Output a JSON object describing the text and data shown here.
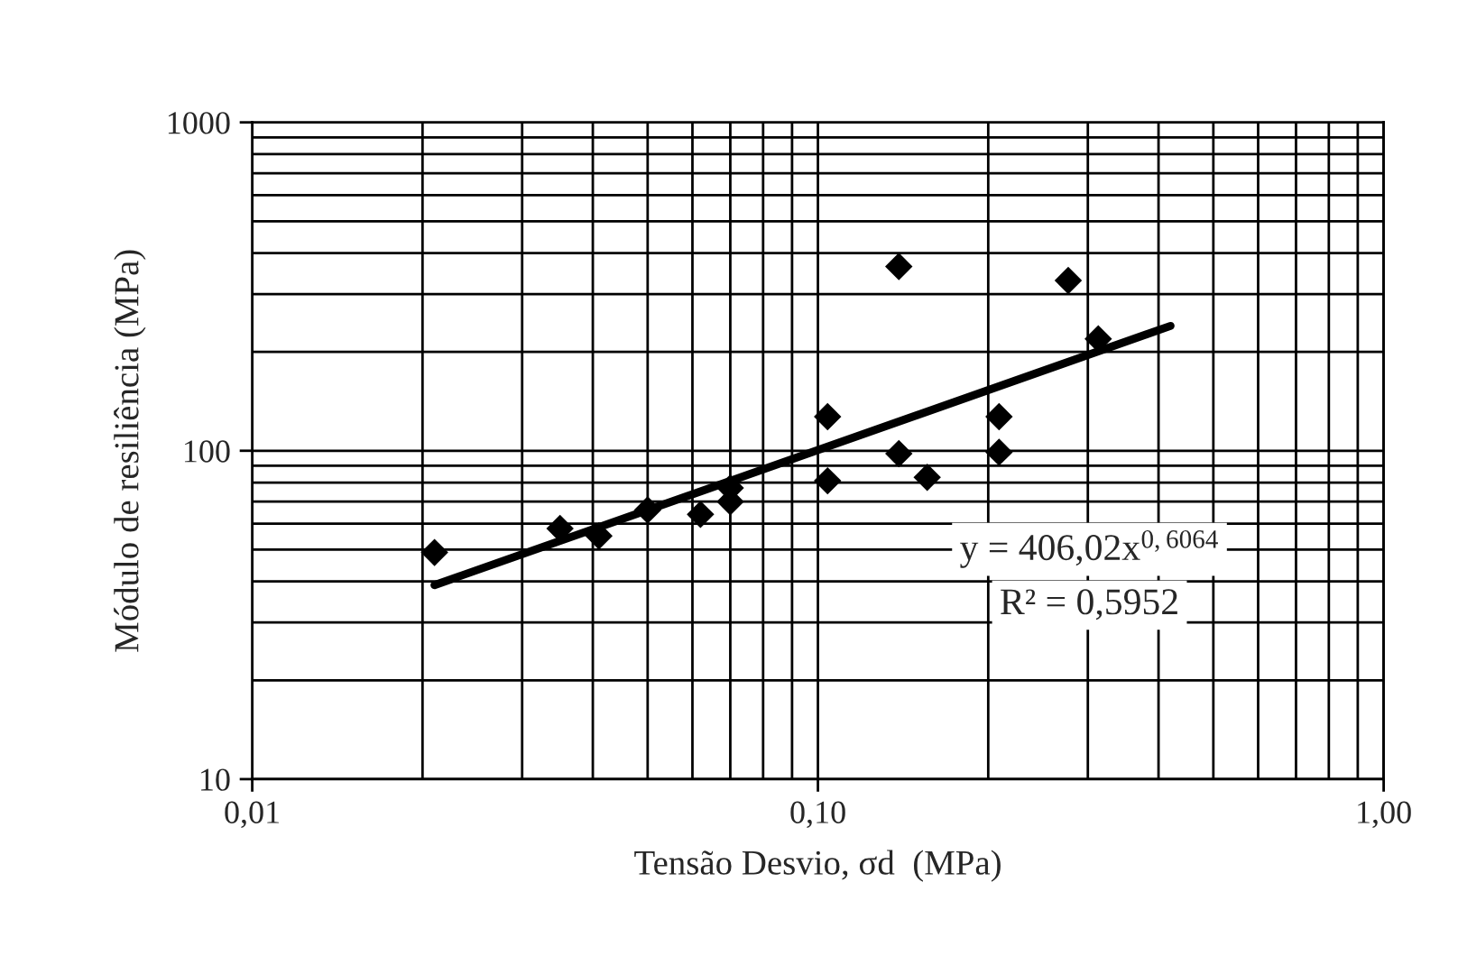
{
  "chart_data": {
    "type": "scatter",
    "xlabel": "Tensão Desvio, σd  (MPa)",
    "ylabel": "Módulo de resiliência (MPa)",
    "log": "xy",
    "grid": true,
    "marker": "diamond",
    "xlim": [
      0.01,
      1
    ],
    "ylim": [
      10,
      1000
    ],
    "xticks": [
      {
        "value": 0.01,
        "label": "0,01"
      },
      {
        "value": 0.02,
        "label": null
      },
      {
        "value": 0.03,
        "label": null
      },
      {
        "value": 0.04,
        "label": null
      },
      {
        "value": 0.05,
        "label": null
      },
      {
        "value": 0.06,
        "label": null
      },
      {
        "value": 0.07,
        "label": null
      },
      {
        "value": 0.08,
        "label": null
      },
      {
        "value": 0.09,
        "label": null
      },
      {
        "value": 0.1,
        "label": "0,10"
      },
      {
        "value": 0.2,
        "label": null
      },
      {
        "value": 0.3,
        "label": null
      },
      {
        "value": 0.4,
        "label": null
      },
      {
        "value": 0.5,
        "label": null
      },
      {
        "value": 0.6,
        "label": null
      },
      {
        "value": 0.7,
        "label": null
      },
      {
        "value": 0.8,
        "label": null
      },
      {
        "value": 0.9,
        "label": null
      },
      {
        "value": 1,
        "label": "1,00"
      }
    ],
    "yticks": [
      10,
      {
        "value": 20,
        "label": null
      },
      {
        "value": 30,
        "label": null
      },
      {
        "value": 40,
        "label": null
      },
      {
        "value": 50,
        "label": null
      },
      {
        "value": 60,
        "label": null
      },
      {
        "value": 70,
        "label": null
      },
      {
        "value": 80,
        "label": null
      },
      {
        "value": 90,
        "label": null
      },
      100,
      {
        "value": 200,
        "label": null
      },
      {
        "value": 300,
        "label": null
      },
      {
        "value": 400,
        "label": null
      },
      {
        "value": 500,
        "label": null
      },
      {
        "value": 600,
        "label": null
      },
      {
        "value": 700,
        "label": null
      },
      {
        "value": 800,
        "label": null
      },
      {
        "value": 900,
        "label": null
      },
      1000
    ],
    "series": [
      {
        "color": "#000000",
        "x": [
          0.021,
          0.035,
          0.041,
          0.05,
          0.062,
          0.07,
          0.07,
          0.104,
          0.104,
          0.139,
          0.139,
          0.156,
          0.209,
          0.209,
          0.277,
          0.313
        ],
        "values": [
          49,
          58,
          55,
          66,
          64,
          70,
          77,
          127,
          81,
          364,
          98,
          83,
          127,
          99,
          330,
          219
        ]
      },
      {
        "type": "line",
        "color": "#000000",
        "marker": "none",
        "x": [
          0.021,
          0.42
        ],
        "values": [
          39,
          240
        ]
      }
    ],
    "annotations": [
      "y = 406,02x$^{0,6064}$",
      "R² = 0,5952"
    ]
  }
}
